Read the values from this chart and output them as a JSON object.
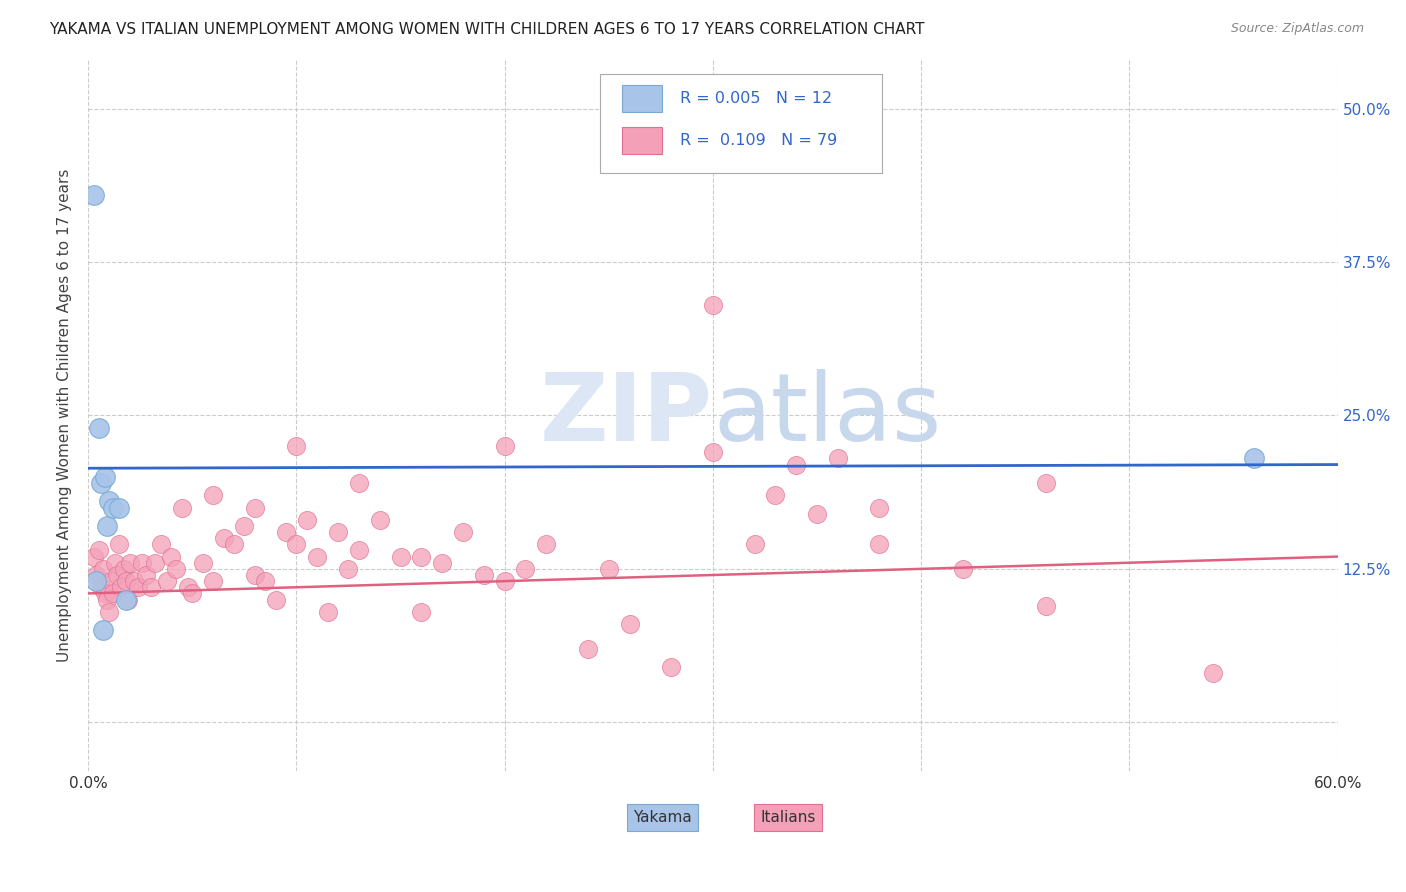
{
  "title": "YAKAMA VS ITALIAN UNEMPLOYMENT AMONG WOMEN WITH CHILDREN AGES 6 TO 17 YEARS CORRELATION CHART",
  "source": "Source: ZipAtlas.com",
  "ylabel": "Unemployment Among Women with Children Ages 6 to 17 years",
  "xlim": [
    0.0,
    0.6
  ],
  "ylim": [
    -0.04,
    0.54
  ],
  "yticks": [
    0.0,
    0.125,
    0.25,
    0.375,
    0.5
  ],
  "ytick_labels_right": [
    "",
    "12.5%",
    "25.0%",
    "37.5%",
    "50.0%"
  ],
  "xticks": [
    0.0,
    0.1,
    0.2,
    0.3,
    0.4,
    0.5,
    0.6
  ],
  "xtick_labels": [
    "0.0%",
    "",
    "",
    "",
    "",
    "",
    "60.0%"
  ],
  "background_color": "#ffffff",
  "grid_color": "#cccccc",
  "title_color": "#222222",
  "title_fontsize": 11,
  "watermark_zip": "ZIP",
  "watermark_atlas": "atlas",
  "watermark_color": "#dce6f4",
  "legend_r1": "R = 0.005",
  "legend_n1": "N = 12",
  "legend_r2": "R =  0.109",
  "legend_n2": "N = 79",
  "legend_color": "#3366cc",
  "yakama_color": "#a8c4e8",
  "yakama_edge_color": "#7aaad4",
  "italian_color": "#f4a0b8",
  "italian_edge_color": "#e07090",
  "trend_yakama_color": "#3366cc",
  "trend_italian_color": "#e06080",
  "yakama_x": [
    0.003,
    0.004,
    0.005,
    0.006,
    0.007,
    0.008,
    0.009,
    0.01,
    0.012,
    0.015,
    0.018,
    0.56
  ],
  "yakama_y": [
    0.43,
    0.115,
    0.24,
    0.195,
    0.075,
    0.2,
    0.16,
    0.18,
    0.175,
    0.175,
    0.1,
    0.215
  ],
  "italian_x": [
    0.003,
    0.004,
    0.005,
    0.006,
    0.007,
    0.008,
    0.009,
    0.01,
    0.011,
    0.012,
    0.013,
    0.014,
    0.015,
    0.016,
    0.017,
    0.018,
    0.019,
    0.02,
    0.022,
    0.024,
    0.026,
    0.028,
    0.03,
    0.032,
    0.035,
    0.038,
    0.04,
    0.042,
    0.045,
    0.048,
    0.05,
    0.055,
    0.06,
    0.065,
    0.07,
    0.075,
    0.08,
    0.085,
    0.09,
    0.095,
    0.1,
    0.105,
    0.11,
    0.115,
    0.12,
    0.125,
    0.13,
    0.14,
    0.15,
    0.16,
    0.17,
    0.18,
    0.19,
    0.2,
    0.21,
    0.22,
    0.24,
    0.26,
    0.28,
    0.3,
    0.32,
    0.34,
    0.36,
    0.38,
    0.42,
    0.46,
    0.3,
    0.33,
    0.35,
    0.06,
    0.08,
    0.1,
    0.13,
    0.16,
    0.2,
    0.25,
    0.38,
    0.46,
    0.54
  ],
  "italian_y": [
    0.135,
    0.12,
    0.14,
    0.11,
    0.125,
    0.105,
    0.1,
    0.09,
    0.115,
    0.105,
    0.13,
    0.12,
    0.145,
    0.11,
    0.125,
    0.115,
    0.1,
    0.13,
    0.115,
    0.11,
    0.13,
    0.12,
    0.11,
    0.13,
    0.145,
    0.115,
    0.135,
    0.125,
    0.175,
    0.11,
    0.105,
    0.13,
    0.115,
    0.15,
    0.145,
    0.16,
    0.12,
    0.115,
    0.1,
    0.155,
    0.145,
    0.165,
    0.135,
    0.09,
    0.155,
    0.125,
    0.14,
    0.165,
    0.135,
    0.09,
    0.13,
    0.155,
    0.12,
    0.115,
    0.125,
    0.145,
    0.06,
    0.08,
    0.045,
    0.34,
    0.145,
    0.21,
    0.215,
    0.145,
    0.125,
    0.195,
    0.22,
    0.185,
    0.17,
    0.185,
    0.175,
    0.225,
    0.195,
    0.135,
    0.225,
    0.125,
    0.175,
    0.095,
    0.04
  ],
  "yakama_trend_y0": 0.207,
  "yakama_trend_y1": 0.21,
  "italian_trend_y0": 0.105,
  "italian_trend_y1": 0.135
}
